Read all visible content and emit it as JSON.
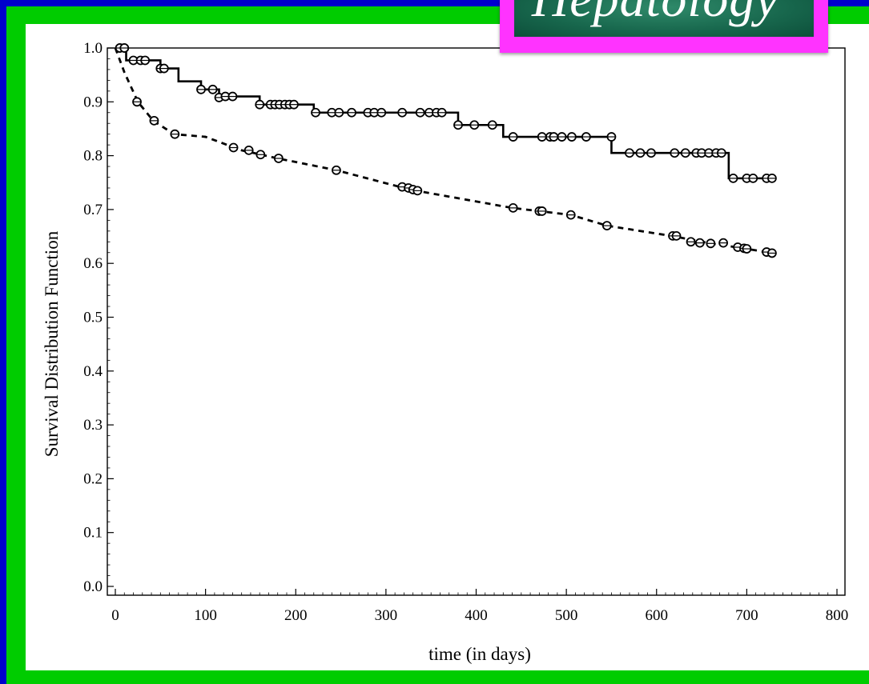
{
  "logo": {
    "text": "Hepatology"
  },
  "chart_data": {
    "type": "line",
    "title": "",
    "xlabel": "time (in days)",
    "ylabel": "Survival Distribution Function",
    "xlim": [
      0,
      800
    ],
    "ylim": [
      0.0,
      1.0
    ],
    "x_ticks": [
      "0",
      "100",
      "200",
      "300",
      "400",
      "500",
      "600",
      "700",
      "800"
    ],
    "y_ticks": [
      "0.0",
      "0.1",
      "0.2",
      "0.3",
      "0.4",
      "0.5",
      "0.6",
      "0.7",
      "0.8",
      "0.9",
      "1.0"
    ],
    "grid": false,
    "series": [
      {
        "style": "solid-step",
        "color": "#000000",
        "x": [
          0,
          12,
          30,
          50,
          70,
          95,
          115,
          125,
          160,
          220,
          380,
          430,
          550,
          650,
          680,
          728
        ],
        "y": [
          1.0,
          0.977,
          0.977,
          0.962,
          0.938,
          0.923,
          0.908,
          0.91,
          0.895,
          0.88,
          0.857,
          0.835,
          0.805,
          0.805,
          0.758,
          0.758
        ],
        "censored": [
          [
            5,
            1.0
          ],
          [
            10,
            1.0
          ],
          [
            20,
            0.977
          ],
          [
            28,
            0.977
          ],
          [
            33,
            0.977
          ],
          [
            50,
            0.962
          ],
          [
            54,
            0.962
          ],
          [
            95,
            0.923
          ],
          [
            108,
            0.923
          ],
          [
            115,
            0.908
          ],
          [
            122,
            0.91
          ],
          [
            130,
            0.91
          ],
          [
            160,
            0.895
          ],
          [
            172,
            0.895
          ],
          [
            177,
            0.895
          ],
          [
            182,
            0.895
          ],
          [
            188,
            0.895
          ],
          [
            193,
            0.895
          ],
          [
            198,
            0.895
          ],
          [
            222,
            0.88
          ],
          [
            240,
            0.88
          ],
          [
            248,
            0.88
          ],
          [
            262,
            0.88
          ],
          [
            280,
            0.88
          ],
          [
            287,
            0.88
          ],
          [
            295,
            0.88
          ],
          [
            318,
            0.88
          ],
          [
            338,
            0.88
          ],
          [
            348,
            0.88
          ],
          [
            356,
            0.88
          ],
          [
            362,
            0.88
          ],
          [
            380,
            0.857
          ],
          [
            398,
            0.857
          ],
          [
            418,
            0.857
          ],
          [
            441,
            0.835
          ],
          [
            473,
            0.835
          ],
          [
            482,
            0.835
          ],
          [
            486,
            0.835
          ],
          [
            495,
            0.835
          ],
          [
            506,
            0.835
          ],
          [
            522,
            0.835
          ],
          [
            550,
            0.835
          ],
          [
            570,
            0.805
          ],
          [
            582,
            0.805
          ],
          [
            594,
            0.805
          ],
          [
            620,
            0.805
          ],
          [
            632,
            0.805
          ],
          [
            644,
            0.805
          ],
          [
            650,
            0.805
          ],
          [
            658,
            0.805
          ],
          [
            666,
            0.805
          ],
          [
            672,
            0.805
          ],
          [
            685,
            0.758
          ],
          [
            700,
            0.758
          ],
          [
            707,
            0.758
          ],
          [
            722,
            0.758
          ],
          [
            728,
            0.758
          ]
        ]
      },
      {
        "style": "dashed",
        "color": "#000000",
        "x": [
          0,
          10,
          25,
          42,
          65,
          100,
          140,
          180,
          245,
          320,
          340,
          440,
          505,
          545,
          620,
          660,
          700,
          728
        ],
        "y": [
          1.0,
          0.955,
          0.9,
          0.865,
          0.84,
          0.835,
          0.81,
          0.795,
          0.773,
          0.74,
          0.733,
          0.703,
          0.69,
          0.67,
          0.65,
          0.637,
          0.627,
          0.619
        ],
        "censored": [
          [
            5,
            1.0
          ],
          [
            10,
            1.0
          ],
          [
            24,
            0.9
          ],
          [
            43,
            0.865
          ],
          [
            66,
            0.84
          ],
          [
            131,
            0.815
          ],
          [
            148,
            0.81
          ],
          [
            161,
            0.802
          ],
          [
            181,
            0.795
          ],
          [
            245,
            0.773
          ],
          [
            318,
            0.742
          ],
          [
            325,
            0.74
          ],
          [
            330,
            0.737
          ],
          [
            335,
            0.735
          ],
          [
            441,
            0.703
          ],
          [
            470,
            0.697
          ],
          [
            473,
            0.697
          ],
          [
            505,
            0.69
          ],
          [
            545,
            0.67
          ],
          [
            618,
            0.651
          ],
          [
            622,
            0.651
          ],
          [
            638,
            0.64
          ],
          [
            648,
            0.638
          ],
          [
            660,
            0.637
          ],
          [
            674,
            0.638
          ],
          [
            690,
            0.63
          ],
          [
            697,
            0.628
          ],
          [
            700,
            0.627
          ],
          [
            722,
            0.621
          ],
          [
            728,
            0.619
          ]
        ]
      }
    ]
  }
}
